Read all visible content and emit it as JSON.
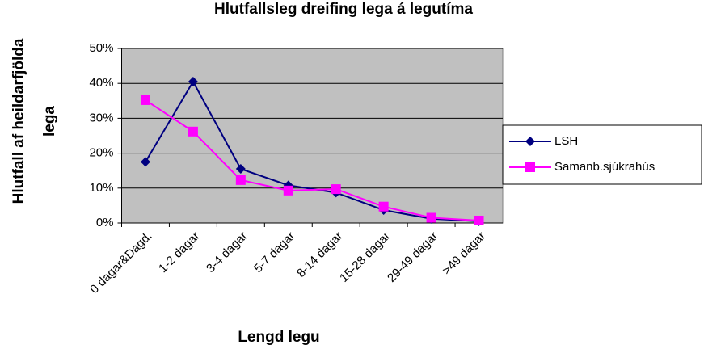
{
  "chart_data": {
    "type": "line",
    "title": "Hlutfallsleg dreifing lega á legutíma",
    "y_label": [
      "Hlutfall af heildarfjölda",
      "lega"
    ],
    "x_label": "Lengd legu",
    "categories": [
      "0 dagar&Dagd.",
      "1-2 dagar",
      "3-4 dagar",
      "5-7 dagar",
      "8-14 dagar",
      "15-28 dagar",
      "29-49 dagar",
      ">49 dagar"
    ],
    "series": [
      {
        "name": "LSH",
        "color": "#000080",
        "marker": "diamond",
        "values": [
          17.5,
          40.5,
          15.5,
          10.8,
          8.7,
          3.7,
          1.2,
          0.5
        ]
      },
      {
        "name": "Samanb.sjúkrahús",
        "color": "#ff00ff",
        "marker": "square",
        "values": [
          35.2,
          26.2,
          12.3,
          9.3,
          9.7,
          4.7,
          1.5,
          0.7
        ]
      }
    ],
    "ylim": [
      0,
      50
    ],
    "yticks": [
      {
        "value": 0,
        "label": "0%"
      },
      {
        "value": 10,
        "label": "10%"
      },
      {
        "value": 20,
        "label": "20%"
      },
      {
        "value": 30,
        "label": "30%"
      },
      {
        "value": 40,
        "label": "40%"
      },
      {
        "value": 50,
        "label": "50%"
      }
    ],
    "grid": true,
    "legend": "right"
  }
}
